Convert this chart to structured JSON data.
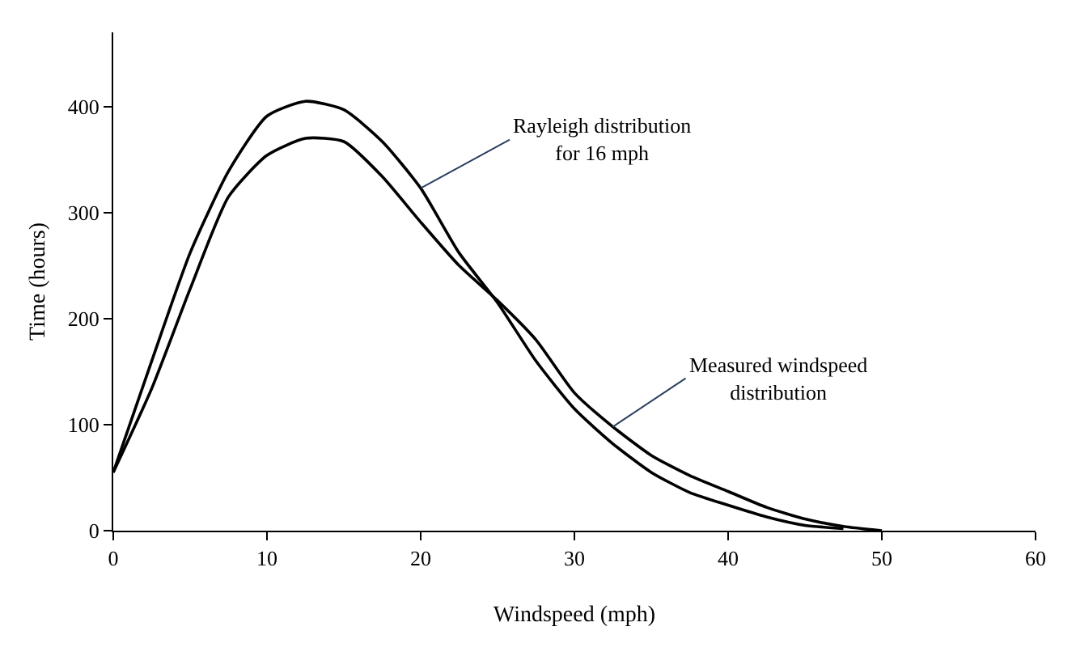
{
  "chart_data": {
    "type": "line",
    "xlabel": "Windspeed (mph)",
    "ylabel": "Time (hours)",
    "xlim": [
      0,
      60
    ],
    "xticks": [
      0,
      10,
      20,
      30,
      40,
      50,
      60
    ],
    "ylim": [
      0,
      470
    ],
    "yticks": [
      0,
      100,
      200,
      300,
      400
    ],
    "marker": "none",
    "line_style": "solid",
    "series": [
      {
        "color": "#000000",
        "x": [
          0,
          2.5,
          5,
          7.5,
          10,
          12.5,
          15,
          17.5,
          20,
          22.5,
          25,
          27.5,
          30,
          32.5,
          35,
          37.5,
          40,
          42.5,
          45,
          47.5
        ],
        "values": [
          55,
          160,
          262,
          339,
          391,
          405,
          397,
          367,
          323,
          262,
          215,
          160,
          115,
          82,
          55,
          36,
          24,
          13,
          5,
          2
        ]
      },
      {
        "color": "#000000",
        "x": [
          0,
          2.5,
          5,
          7.5,
          10,
          12.5,
          15,
          17.5,
          20,
          22.5,
          25,
          27.5,
          30,
          32.5,
          35,
          37.5,
          40,
          42.5,
          45,
          47.5,
          50
        ],
        "values": [
          55,
          134,
          228,
          315,
          354,
          370,
          367,
          334,
          291,
          250,
          217,
          180,
          130,
          98,
          71,
          52,
          37,
          22,
          11,
          4,
          0
        ]
      }
    ],
    "annotations": [
      {
        "text": "Rayleigh distribution\nfor 16 mph",
        "x": 20,
        "y": 323
      },
      {
        "text": "Measured windspeed\ndistribution",
        "x": 32.5,
        "y": 98
      }
    ]
  }
}
